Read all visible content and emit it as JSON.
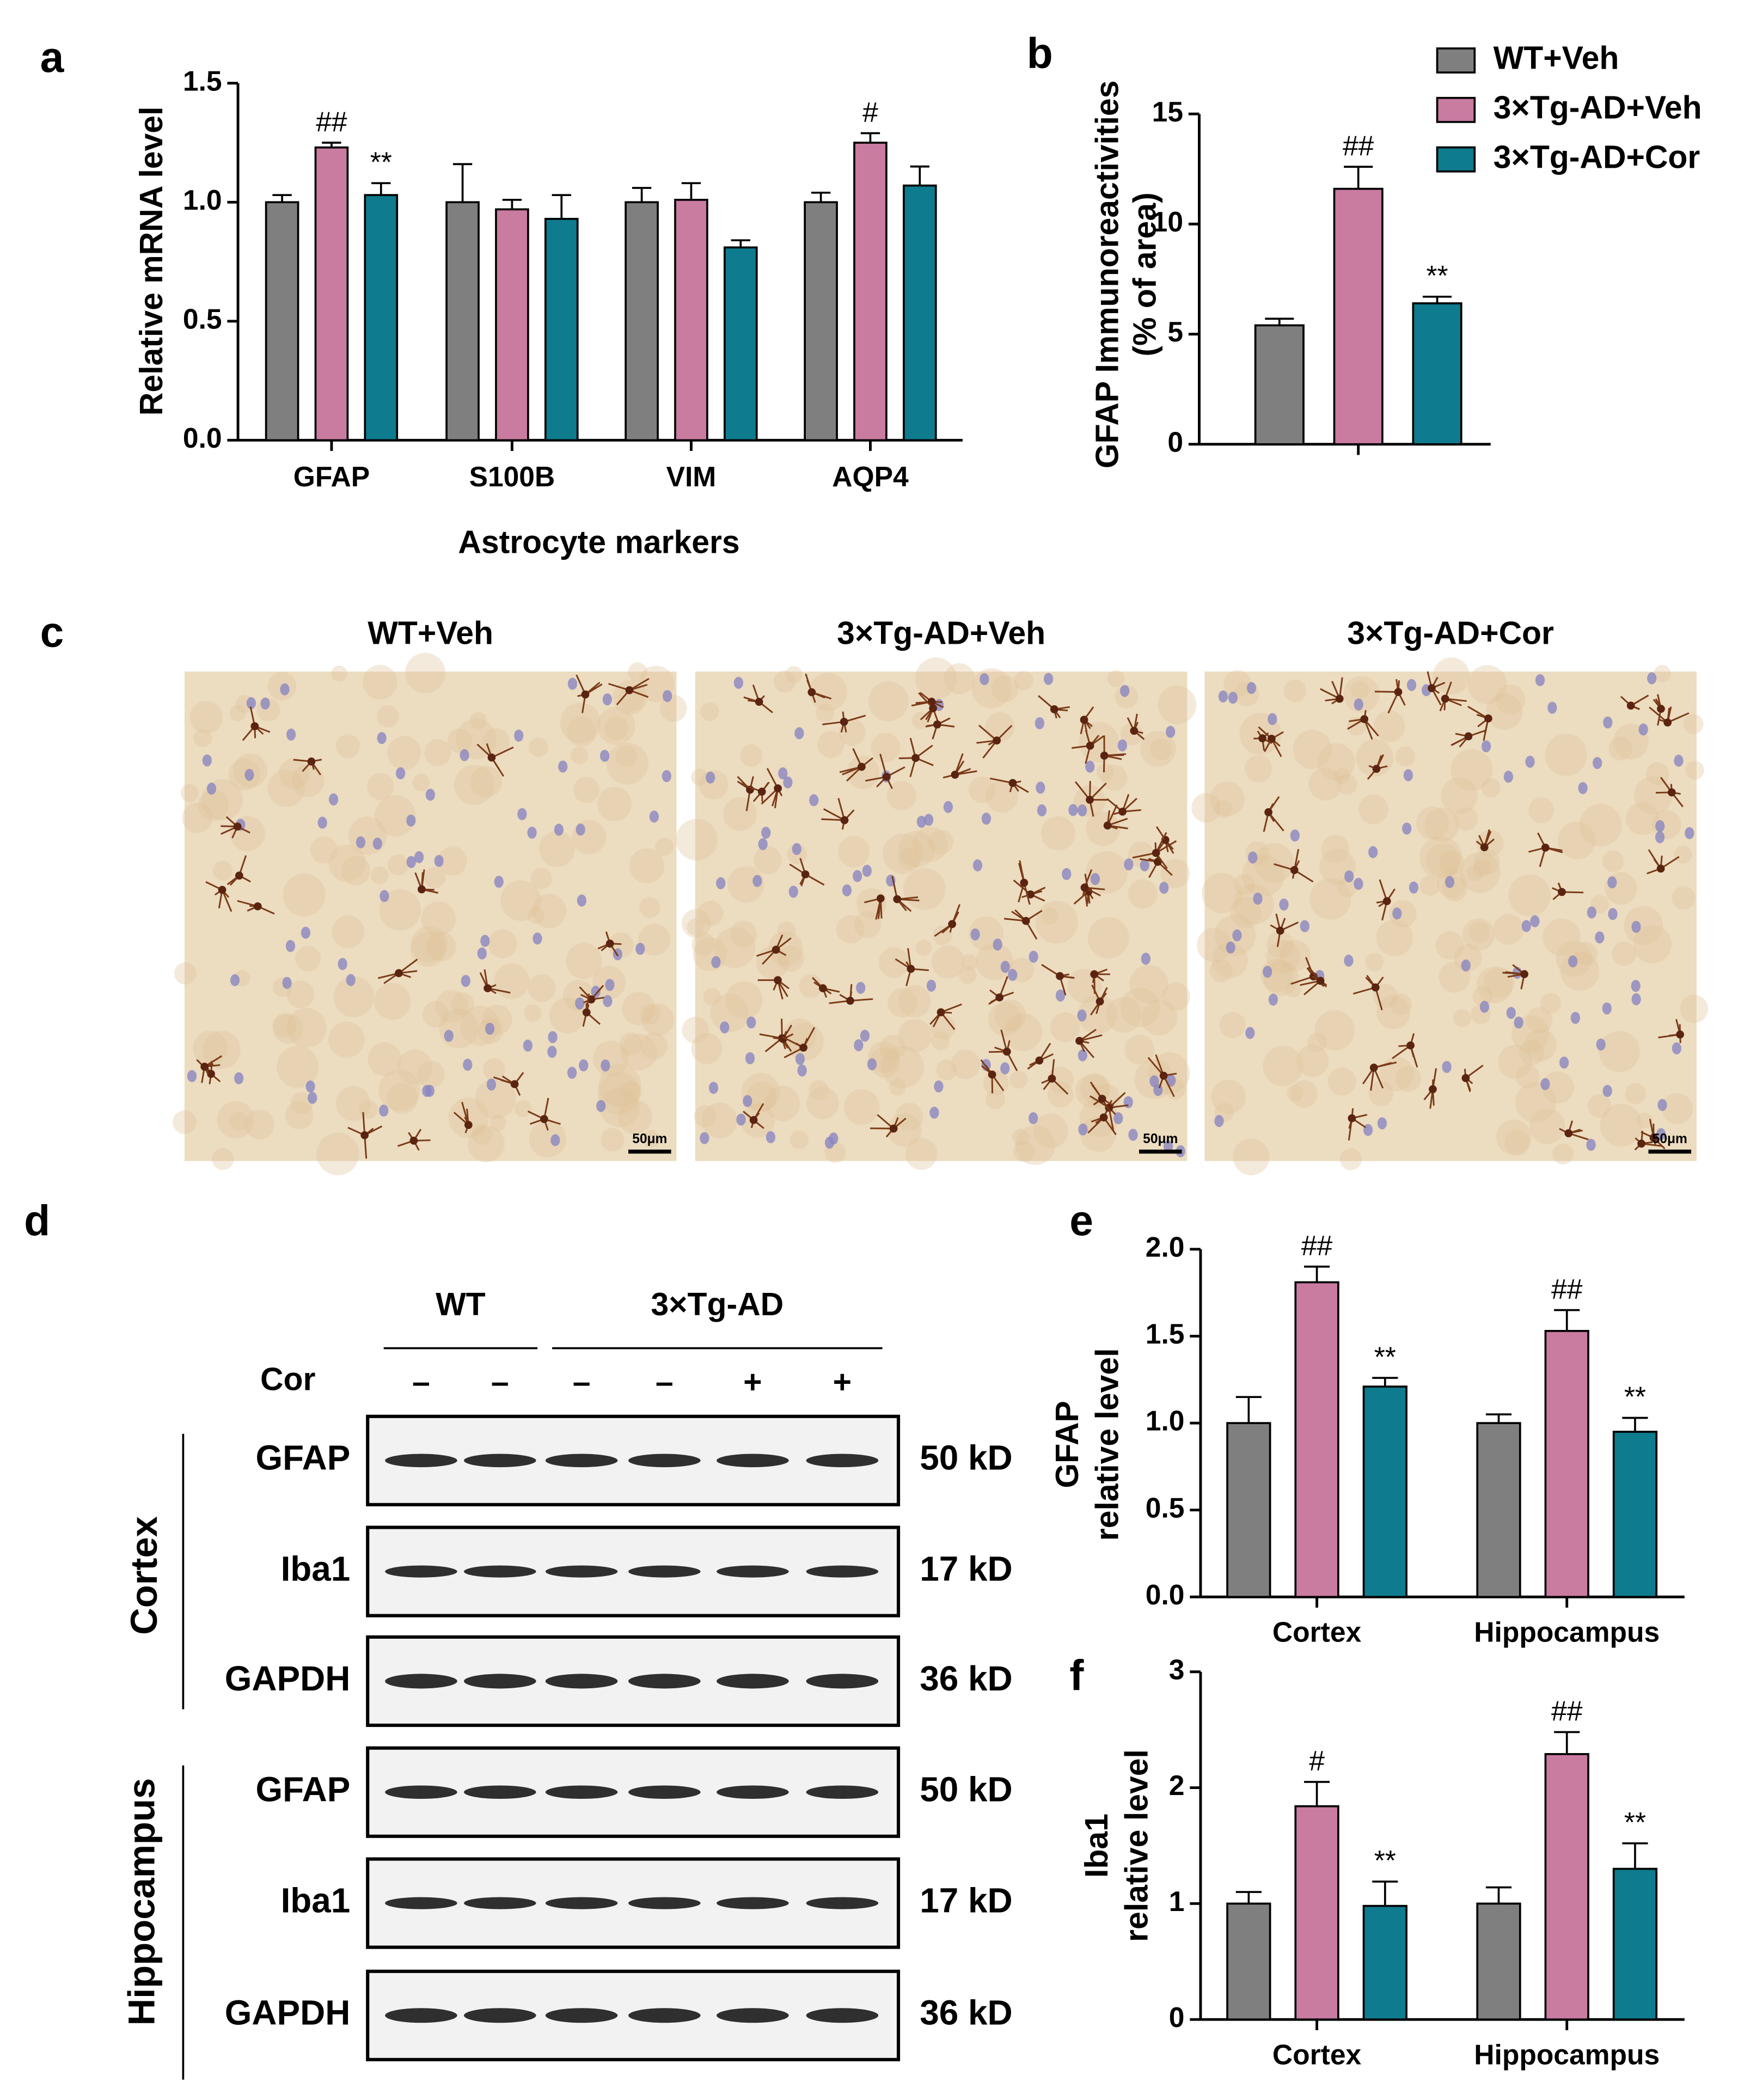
{
  "chart_data": [
    {
      "type": "bar",
      "label": "a",
      "ylabel": [
        "Relative mRNA level"
      ],
      "xlabel": "Astrocyte markers",
      "categories": [
        "GFAP",
        "S100B",
        "VIM",
        "AQP4"
      ],
      "ylim": [
        0,
        1.5
      ],
      "yticks": [
        {
          "value": 0,
          "label": "0.0"
        },
        0.5,
        {
          "value": 1,
          "label": "1.0"
        },
        1.5
      ],
      "legend": false,
      "series": [
        {
          "name": "WT+Veh",
          "color": "#7f7f7f",
          "values": [
            1.0,
            1.0,
            1.0,
            1.0
          ],
          "errors": [
            0.03,
            0.16,
            0.06,
            0.04
          ],
          "annotations": [
            null,
            null,
            null,
            null
          ]
        },
        {
          "name": "3×Tg-AD+Veh",
          "color": "#c97ba0",
          "values": [
            1.23,
            0.97,
            1.01,
            1.25
          ],
          "errors": [
            0.02,
            0.04,
            0.07,
            0.04
          ],
          "annotations": [
            "##",
            null,
            null,
            "#"
          ]
        },
        {
          "name": "3×Tg-AD+Cor",
          "color": "#0e7b8e",
          "values": [
            1.03,
            0.93,
            0.81,
            1.07
          ],
          "errors": [
            0.05,
            0.1,
            0.03,
            0.08
          ],
          "annotations": [
            "**",
            null,
            null,
            null
          ]
        }
      ]
    },
    {
      "type": "bar",
      "label": "b",
      "ylabel": [
        "GFAP Immunoreactivities",
        "(% of area)"
      ],
      "categories": [
        null
      ],
      "ylim": [
        0,
        15
      ],
      "yticks": [
        0,
        5,
        10,
        15
      ],
      "legend": "top-right",
      "series": [
        {
          "name": "WT+Veh",
          "color": "#7f7f7f",
          "values": [
            5.4
          ],
          "errors": [
            0.3
          ],
          "annotations": [
            null
          ]
        },
        {
          "name": "3×Tg-AD+Veh",
          "color": "#c97ba0",
          "values": [
            11.6
          ],
          "errors": [
            1.0
          ],
          "annotations": [
            "##"
          ]
        },
        {
          "name": "3×Tg-AD+Cor",
          "color": "#0e7b8e",
          "values": [
            6.4
          ],
          "errors": [
            0.3
          ],
          "annotations": [
            "**"
          ]
        }
      ]
    },
    {
      "type": "bar",
      "label": "e",
      "ylabel": [
        "GFAP",
        "relative level"
      ],
      "categories": [
        "Cortex",
        "Hippocampus"
      ],
      "ylim": [
        0,
        2
      ],
      "yticks": [
        {
          "value": 0,
          "label": "0.0"
        },
        0.5,
        {
          "value": 1,
          "label": "1.0"
        },
        1.5,
        {
          "value": 2,
          "label": "2.0"
        }
      ],
      "legend": false,
      "series": [
        {
          "name": "WT+Veh",
          "color": "#7f7f7f",
          "values": [
            1.0,
            1.0
          ],
          "errors": [
            0.15,
            0.05
          ],
          "annotations": [
            null,
            null
          ]
        },
        {
          "name": "3×Tg-AD+Veh",
          "color": "#c97ba0",
          "values": [
            1.81,
            1.53
          ],
          "errors": [
            0.09,
            0.12
          ],
          "annotations": [
            "##",
            "##"
          ]
        },
        {
          "name": "3×Tg-AD+Cor",
          "color": "#0e7b8e",
          "values": [
            1.21,
            0.95
          ],
          "errors": [
            0.05,
            0.08
          ],
          "annotations": [
            "**",
            "**"
          ]
        }
      ]
    },
    {
      "type": "bar",
      "label": "f",
      "ylabel": [
        "Iba1",
        "relative level"
      ],
      "categories": [
        "Cortex",
        "Hippocampus"
      ],
      "ylim": [
        0,
        3
      ],
      "yticks": [
        0,
        1,
        2,
        3
      ],
      "legend": false,
      "series": [
        {
          "name": "WT+Veh",
          "color": "#7f7f7f",
          "values": [
            1.0,
            1.0
          ],
          "errors": [
            0.1,
            0.14
          ],
          "annotations": [
            null,
            null
          ]
        },
        {
          "name": "3×Tg-AD+Veh",
          "color": "#c97ba0",
          "values": [
            1.84,
            2.29
          ],
          "errors": [
            0.21,
            0.19
          ],
          "annotations": [
            "#",
            "##"
          ]
        },
        {
          "name": "3×Tg-AD+Cor",
          "color": "#0e7b8e",
          "values": [
            0.98,
            1.3
          ],
          "errors": [
            0.21,
            0.22
          ],
          "annotations": [
            "**",
            "**"
          ]
        }
      ]
    }
  ],
  "micrographs": {
    "label": "c",
    "panels": [
      {
        "title": "WT+Veh",
        "scale_bar": "50μm"
      },
      {
        "title": "3×Tg-AD+Veh",
        "scale_bar": "50μm"
      },
      {
        "title": "3×Tg-AD+Cor",
        "scale_bar": "50μm"
      }
    ]
  },
  "blot": {
    "label": "d",
    "groups": [
      "WT",
      "3×Tg-AD"
    ],
    "treatment": {
      "name": "Cor",
      "signs": [
        "–",
        "–",
        "–",
        "–",
        "+",
        "+"
      ]
    },
    "regions": [
      {
        "name": "Cortex",
        "rows": [
          {
            "protein": "GFAP",
            "size": "50 kD"
          },
          {
            "protein": "Iba1",
            "size": "17 kD"
          },
          {
            "protein": "GAPDH",
            "size": "36 kD"
          }
        ]
      },
      {
        "name": "Hippocampus",
        "rows": [
          {
            "protein": "GFAP",
            "size": "50 kD"
          },
          {
            "protein": "Iba1",
            "size": "17 kD"
          },
          {
            "protein": "GAPDH",
            "size": "36 kD"
          }
        ]
      }
    ]
  }
}
